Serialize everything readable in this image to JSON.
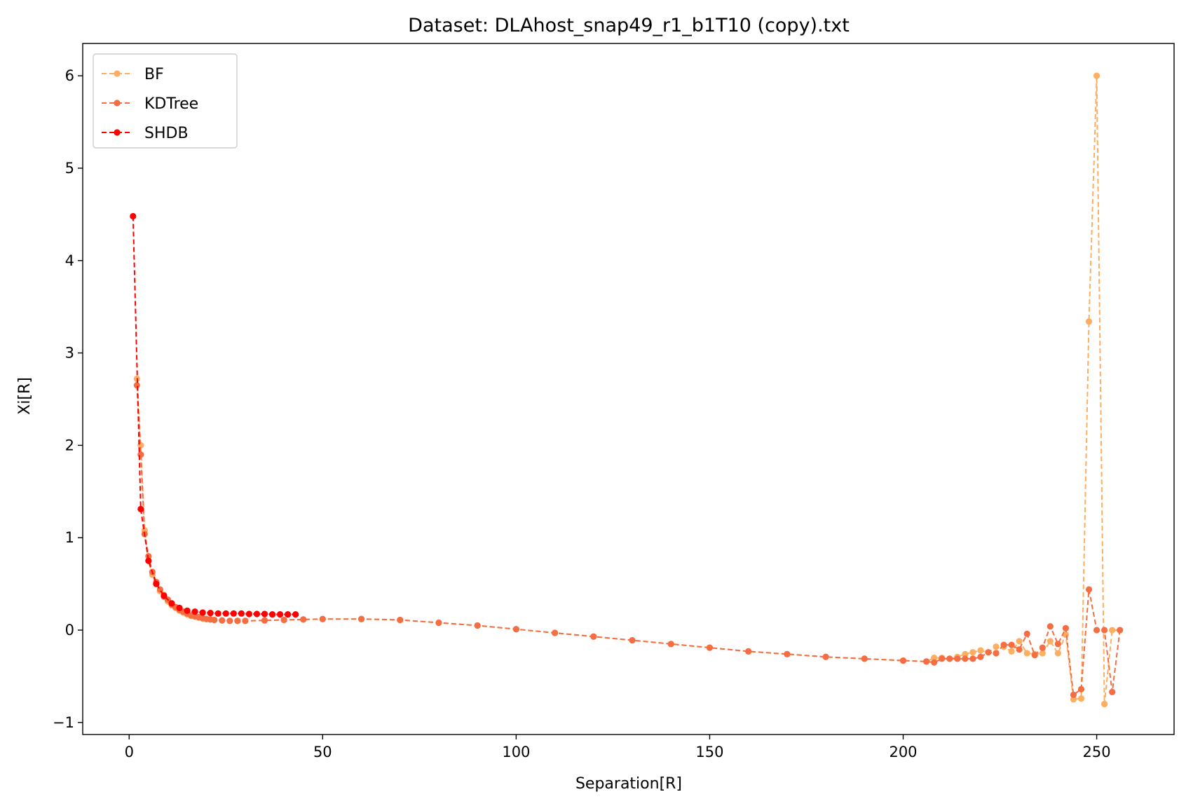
{
  "chart_data": {
    "type": "line",
    "title": "Dataset: DLAhost_snap49_r1_b1T10 (copy).txt",
    "xlabel": "Separation[R]",
    "ylabel": "Xi[R]",
    "xlim": [
      -12,
      270
    ],
    "ylim": [
      -1.13,
      6.35
    ],
    "xticks": [
      0,
      50,
      100,
      150,
      200,
      250
    ],
    "yticks": [
      -1,
      0,
      1,
      2,
      3,
      4,
      5,
      6
    ],
    "xtick_labels": [
      "0",
      "50",
      "100",
      "150",
      "200",
      "250"
    ],
    "ytick_labels": [
      "−1",
      "0",
      "1",
      "2",
      "3",
      "4",
      "5",
      "6"
    ],
    "legend_position": "upper-left",
    "series": [
      {
        "name": "BF",
        "color": "#fdae61",
        "x": [
          2,
          3,
          4,
          5,
          6,
          7,
          8,
          9,
          10,
          11,
          12,
          13,
          14,
          15,
          16,
          17,
          18,
          19,
          20,
          21,
          22,
          24,
          26,
          28,
          30,
          35,
          40,
          45,
          50,
          60,
          70,
          80,
          90,
          100,
          110,
          120,
          130,
          140,
          150,
          160,
          170,
          180,
          190,
          200,
          206,
          208,
          210,
          212,
          214,
          216,
          218,
          220,
          222,
          224,
          226,
          228,
          230,
          232,
          234,
          236,
          238,
          240,
          242,
          244,
          246,
          248,
          250,
          252,
          254,
          256
        ],
        "y": [
          2.72,
          2.0,
          1.08,
          0.75,
          0.6,
          0.5,
          0.42,
          0.36,
          0.31,
          0.27,
          0.24,
          0.21,
          0.19,
          0.17,
          0.155,
          0.145,
          0.135,
          0.125,
          0.12,
          0.115,
          0.11,
          0.105,
          0.1,
          0.1,
          0.1,
          0.105,
          0.11,
          0.115,
          0.12,
          0.12,
          0.11,
          0.08,
          0.05,
          0.01,
          -0.03,
          -0.07,
          -0.11,
          -0.15,
          -0.19,
          -0.23,
          -0.26,
          -0.29,
          -0.31,
          -0.33,
          -0.34,
          -0.3,
          -0.3,
          -0.31,
          -0.29,
          -0.26,
          -0.24,
          -0.22,
          -0.24,
          -0.18,
          -0.18,
          -0.23,
          -0.12,
          -0.25,
          -0.26,
          -0.25,
          -0.12,
          -0.25,
          -0.05,
          -0.75,
          -0.74,
          3.34,
          6.0,
          -0.8,
          0.0,
          0.0
        ]
      },
      {
        "name": "KDTree",
        "color": "#f46d43",
        "x": [
          2,
          3,
          4,
          5,
          6,
          7,
          8,
          9,
          10,
          11,
          12,
          13,
          14,
          15,
          16,
          17,
          18,
          19,
          20,
          21,
          22,
          24,
          26,
          28,
          30,
          35,
          40,
          45,
          50,
          60,
          70,
          80,
          90,
          100,
          110,
          120,
          130,
          140,
          150,
          160,
          170,
          180,
          190,
          200,
          206,
          208,
          210,
          212,
          214,
          216,
          218,
          220,
          222,
          224,
          226,
          228,
          230,
          232,
          234,
          236,
          238,
          240,
          242,
          244,
          246,
          248,
          250,
          252,
          254,
          256
        ],
        "y": [
          2.65,
          1.9,
          1.04,
          0.8,
          0.63,
          0.52,
          0.44,
          0.38,
          0.33,
          0.28,
          0.25,
          0.22,
          0.2,
          0.18,
          0.16,
          0.15,
          0.14,
          0.13,
          0.12,
          0.115,
          0.11,
          0.105,
          0.1,
          0.1,
          0.1,
          0.105,
          0.11,
          0.115,
          0.12,
          0.12,
          0.11,
          0.08,
          0.05,
          0.01,
          -0.03,
          -0.07,
          -0.11,
          -0.15,
          -0.19,
          -0.23,
          -0.26,
          -0.29,
          -0.31,
          -0.33,
          -0.34,
          -0.35,
          -0.31,
          -0.31,
          -0.31,
          -0.31,
          -0.31,
          -0.29,
          -0.24,
          -0.25,
          -0.16,
          -0.16,
          -0.21,
          -0.04,
          -0.27,
          -0.19,
          0.04,
          -0.15,
          0.02,
          -0.7,
          -0.64,
          0.44,
          0.0,
          0.0,
          -0.67,
          0.0
        ]
      },
      {
        "name": "SHDB",
        "color": "#ff0000",
        "x": [
          1,
          3,
          5,
          7,
          9,
          11,
          13,
          15,
          17,
          19,
          21,
          23,
          25,
          27,
          29,
          31,
          33,
          35,
          37,
          39,
          41,
          43
        ],
        "y": [
          4.48,
          1.31,
          0.75,
          0.5,
          0.37,
          0.29,
          0.24,
          0.21,
          0.2,
          0.19,
          0.185,
          0.18,
          0.18,
          0.18,
          0.18,
          0.175,
          0.175,
          0.175,
          0.17,
          0.17,
          0.17,
          0.17
        ]
      }
    ]
  }
}
